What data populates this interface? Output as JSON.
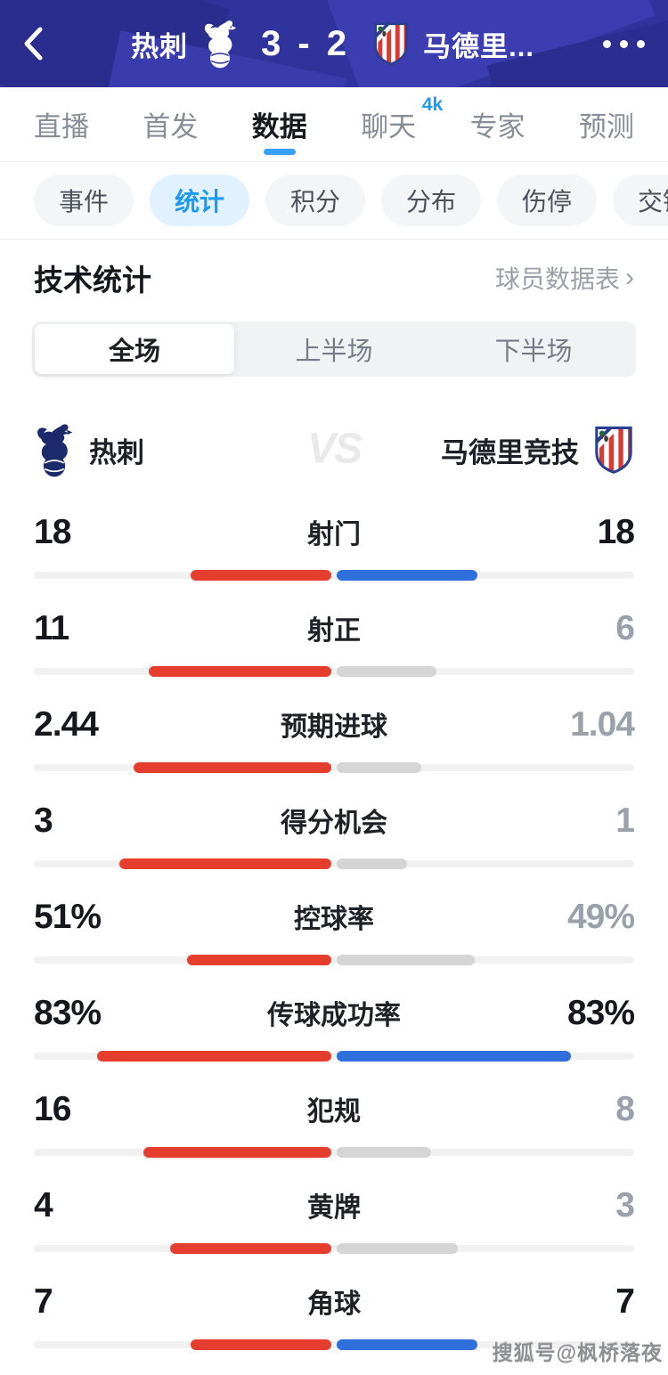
{
  "header": {
    "home_team": "热刺",
    "score": "3 - 2",
    "away_team_truncated": "马德里...",
    "back_icon": "chevron-left",
    "more_icon": "three-dots"
  },
  "nav_tabs": {
    "items": [
      {
        "label": "直播",
        "active": false
      },
      {
        "label": "首发",
        "active": false
      },
      {
        "label": "数据",
        "active": true
      },
      {
        "label": "聊天",
        "active": false,
        "badge": "4k"
      },
      {
        "label": "专家",
        "active": false
      },
      {
        "label": "预测",
        "active": false
      }
    ]
  },
  "sub_tabs": {
    "items": [
      {
        "label": "事件",
        "active": false
      },
      {
        "label": "统计",
        "active": true
      },
      {
        "label": "积分",
        "active": false
      },
      {
        "label": "分布",
        "active": false
      },
      {
        "label": "伤停",
        "active": false
      },
      {
        "label": "交锋",
        "active": false
      }
    ]
  },
  "section": {
    "title": "技术统计",
    "link_label": "球员数据表",
    "link_arrow": "›"
  },
  "period_tabs": {
    "items": [
      {
        "label": "全场",
        "active": true
      },
      {
        "label": "上半场",
        "active": false
      },
      {
        "label": "下半场",
        "active": false
      }
    ]
  },
  "teams": {
    "home": "热刺",
    "away": "马德里竞技",
    "vs_text": "VS"
  },
  "colors": {
    "header_bg": "#31339d",
    "accent_blue": "#1e9af0",
    "home_bar": "#e63e2e",
    "away_bar_win": "#2f6fdb",
    "away_bar_lose": "#d5d5d6",
    "track": "#f1f1f2",
    "num_dark": "#17181d",
    "num_gray": "#9aa1ab"
  },
  "watermark": "搜狐号@枫桥落夜",
  "chart_data": {
    "type": "bar",
    "title": "技术统计 (全场) 热刺 vs 马德里竞技",
    "categories": [
      "射门",
      "射正",
      "预期进球",
      "得分机会",
      "控球率",
      "传球成功率",
      "犯规",
      "黄牌",
      "角球"
    ],
    "units": [
      "",
      "",
      "",
      "",
      "%",
      "%",
      "",
      "",
      ""
    ],
    "series": [
      {
        "name": "热刺",
        "values": [
          18,
          11,
          2.44,
          3,
          51,
          83,
          16,
          4,
          7
        ]
      },
      {
        "name": "马德里竞技",
        "values": [
          18,
          6,
          1.04,
          1,
          49,
          83,
          8,
          3,
          7
        ]
      }
    ],
    "legend_position": "none",
    "grid": false,
    "bar_rule": "percent rows scaled to value/100 of half-width; count rows scaled to value/(home+away) of half-width"
  }
}
